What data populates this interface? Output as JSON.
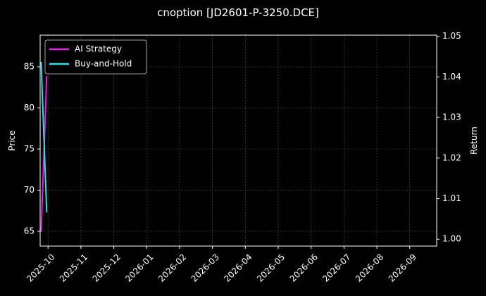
{
  "chart_data": {
    "type": "line",
    "title": "cnoption [JD2601-P-3250.DCE]",
    "y_label": "Price",
    "y2_label": "Return",
    "x": [
      -0.21,
      -0.04
    ],
    "xlim": [
      -0.24,
      11.82
    ],
    "xticks": [
      {
        "value": 0,
        "label": "2025-10"
      },
      {
        "value": 1,
        "label": "2025-11"
      },
      {
        "value": 2,
        "label": "2025-12"
      },
      {
        "value": 3,
        "label": "2026-01"
      },
      {
        "value": 4,
        "label": "2026-02"
      },
      {
        "value": 5,
        "label": "2026-03"
      },
      {
        "value": 6,
        "label": "2026-04"
      },
      {
        "value": 7,
        "label": "2026-05"
      },
      {
        "value": 8,
        "label": "2026-06"
      },
      {
        "value": 9,
        "label": "2026-07"
      },
      {
        "value": 10,
        "label": "2026-08"
      },
      {
        "value": 11,
        "label": "2026-09"
      }
    ],
    "ylim": [
      63.2,
      88.85
    ],
    "yticks": [
      65,
      70,
      75,
      80,
      85
    ],
    "y2lim": [
      0.9983,
      1.0503
    ],
    "y2ticks": [
      {
        "value": 1.0,
        "label": "1.00"
      },
      {
        "value": 1.01,
        "label": "1.01"
      },
      {
        "value": 1.02,
        "label": "1.02"
      },
      {
        "value": 1.03,
        "label": "1.03"
      },
      {
        "value": 1.04,
        "label": "1.04"
      },
      {
        "value": 1.05,
        "label": "1.05"
      }
    ],
    "grid": true,
    "legend": "upper left",
    "series": [
      {
        "name": "AI Strategy",
        "color": "#e81ee8",
        "values": [
          64.9,
          83.9
        ]
      },
      {
        "name": "Buy-and-Hold",
        "color": "#2de0e8",
        "values": [
          85.6,
          67.3
        ]
      }
    ]
  }
}
